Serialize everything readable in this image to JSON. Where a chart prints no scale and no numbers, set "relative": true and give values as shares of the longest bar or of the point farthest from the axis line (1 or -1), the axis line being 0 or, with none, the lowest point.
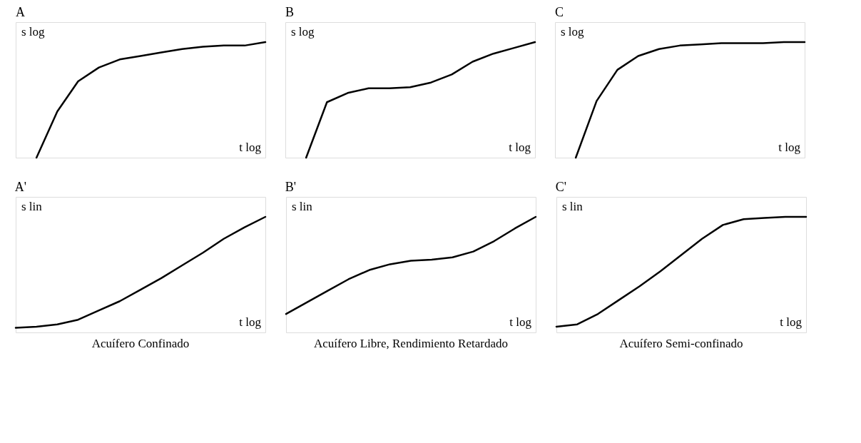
{
  "chart_data": [
    {
      "type": "line",
      "title": "A",
      "ylabel": "s log",
      "xlabel": "t log",
      "relative": true,
      "tick_labels": false,
      "categories": [
        null,
        null,
        null,
        null,
        null,
        null,
        null,
        null,
        null,
        null,
        null,
        null,
        null
      ],
      "series": [
        {
          "color": "#000000",
          "values": [
            null,
            0,
            0.4,
            0.66,
            0.78,
            0.85,
            0.88,
            0.91,
            0.94,
            0.96,
            0.97,
            0.97,
            1.0
          ]
        }
      ]
    },
    {
      "type": "line",
      "title": "B",
      "ylabel": "s log",
      "xlabel": "t log",
      "relative": true,
      "tick_labels": false,
      "categories": [
        null,
        null,
        null,
        null,
        null,
        null,
        null,
        null,
        null,
        null,
        null,
        null,
        null
      ],
      "series": [
        {
          "color": "#000000",
          "values": [
            null,
            0,
            0.48,
            0.56,
            0.6,
            0.6,
            0.61,
            0.65,
            0.72,
            0.83,
            0.9,
            0.95,
            1.0
          ]
        }
      ]
    },
    {
      "type": "line",
      "title": "C",
      "ylabel": "s log",
      "xlabel": "t log",
      "relative": true,
      "tick_labels": false,
      "categories": [
        null,
        null,
        null,
        null,
        null,
        null,
        null,
        null,
        null,
        null,
        null,
        null,
        null
      ],
      "series": [
        {
          "color": "#000000",
          "values": [
            null,
            0,
            0.49,
            0.76,
            0.88,
            0.94,
            0.97,
            0.98,
            0.99,
            0.99,
            0.99,
            1.0,
            1.0
          ]
        }
      ]
    },
    {
      "type": "line",
      "title": "A'",
      "ylabel": "s lin",
      "xlabel": "t log",
      "relative": true,
      "tick_labels": false,
      "annotations": [
        "Acuífero Confinado"
      ],
      "categories": [
        null,
        null,
        null,
        null,
        null,
        null,
        null,
        null,
        null,
        null,
        null,
        null,
        null
      ],
      "series": [
        {
          "color": "#000000",
          "values": [
            0.04,
            0.05,
            0.07,
            0.11,
            0.19,
            0.27,
            0.37,
            0.47,
            0.58,
            0.69,
            0.81,
            0.91,
            1.0
          ]
        }
      ]
    },
    {
      "type": "line",
      "title": "B'",
      "ylabel": "s lin",
      "xlabel": "t log",
      "relative": true,
      "tick_labels": false,
      "annotations": [
        "Acuífero Libre, Rendimiento Retardado"
      ],
      "categories": [
        null,
        null,
        null,
        null,
        null,
        null,
        null,
        null,
        null,
        null,
        null,
        null,
        null
      ],
      "series": [
        {
          "color": "#000000",
          "values": [
            0.16,
            0.26,
            0.36,
            0.46,
            0.54,
            0.59,
            0.62,
            0.63,
            0.65,
            0.7,
            0.79,
            0.9,
            1.0
          ]
        }
      ]
    },
    {
      "type": "line",
      "title": "C'",
      "ylabel": "s lin",
      "xlabel": "t log",
      "relative": true,
      "tick_labels": false,
      "annotations": [
        "Acuífero Semi-confinado"
      ],
      "categories": [
        null,
        null,
        null,
        null,
        null,
        null,
        null,
        null,
        null,
        null,
        null,
        null,
        null
      ],
      "series": [
        {
          "color": "#000000",
          "values": [
            0.05,
            0.07,
            0.16,
            0.28,
            0.4,
            0.53,
            0.67,
            0.81,
            0.93,
            0.98,
            0.99,
            1.0,
            1.0
          ]
        }
      ]
    }
  ]
}
